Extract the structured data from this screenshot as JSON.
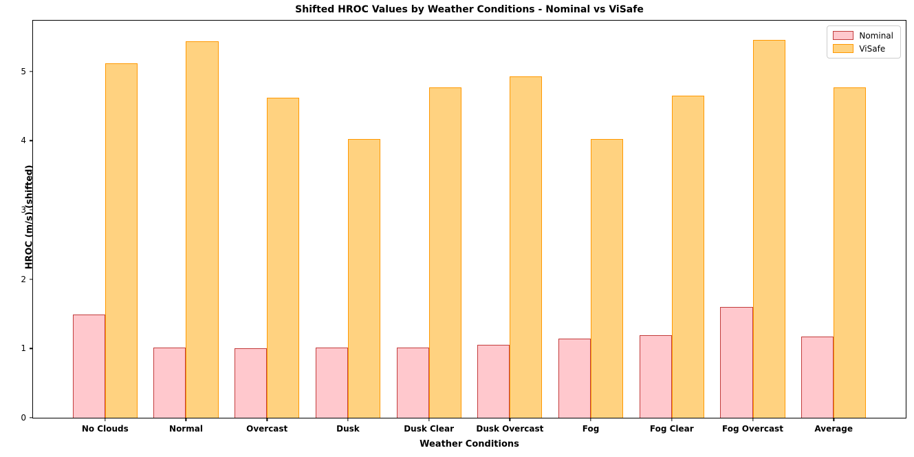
{
  "chart_data": {
    "type": "bar",
    "title": "Shifted HROC Values by Weather Conditions - Nominal vs ViSafe",
    "xlabel": "Weather Conditions",
    "ylabel": "HROC (m/s) (shifted)",
    "categories": [
      "No Clouds",
      "Normal",
      "Overcast",
      "Dusk",
      "Dusk Clear",
      "Dusk Overcast",
      "Fog",
      "Fog Clear",
      "Fog Overcast",
      "Average"
    ],
    "series": [
      {
        "name": "Nominal",
        "fill_color": "#ffc8cd",
        "edge_color": "#c23b3b",
        "values": [
          1.49,
          1.01,
          1.0,
          1.01,
          1.01,
          1.05,
          1.14,
          1.19,
          1.6,
          1.17
        ]
      },
      {
        "name": "ViSafe",
        "fill_color": "#ffd280",
        "edge_color": "#ff9800",
        "values": [
          5.11,
          5.43,
          4.62,
          4.02,
          4.77,
          4.93,
          4.02,
          4.65,
          5.45,
          4.77
        ]
      }
    ],
    "yticks": [
      0,
      1,
      2,
      3,
      4,
      5
    ],
    "ylim": [
      0,
      5.73
    ],
    "bar_width_units": 0.4,
    "x_units_total": 10.78,
    "x_left_pad_units": 0.89,
    "legend_position": "upper right",
    "grid": false,
    "background_color": "#ffffff",
    "spine_color": "#000000"
  }
}
